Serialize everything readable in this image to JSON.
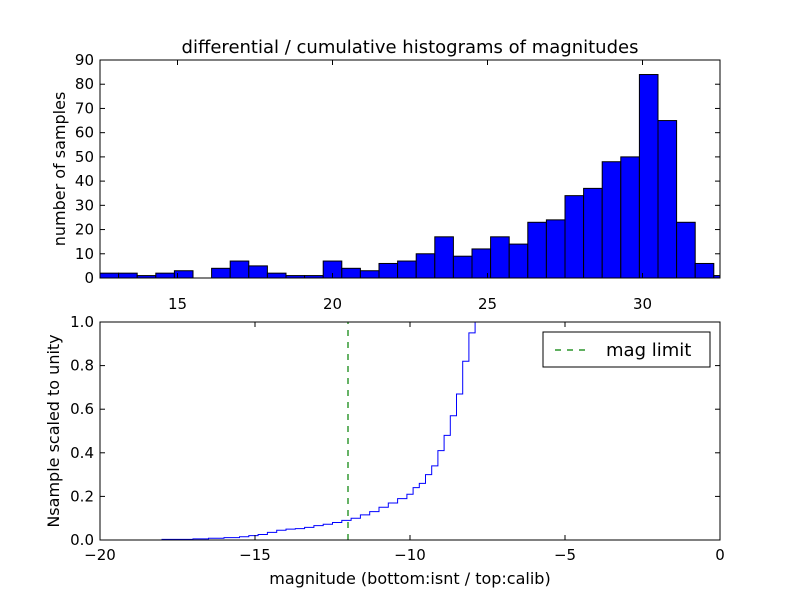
{
  "chart_data": [
    {
      "type": "bar",
      "title": "differential / cumulative histograms of magnitudes",
      "ylabel": "number of samples",
      "xlim": [
        12.5,
        32.5
      ],
      "ylim": [
        0,
        90
      ],
      "xticks": [
        15,
        20,
        25,
        30
      ],
      "yticks": [
        0,
        10,
        20,
        30,
        40,
        50,
        60,
        70,
        80,
        90
      ],
      "bar_color": "#0000ff",
      "bins": [
        {
          "x0": 12.5,
          "x1": 13.1,
          "count": 2
        },
        {
          "x0": 13.1,
          "x1": 13.7,
          "count": 2
        },
        {
          "x0": 13.7,
          "x1": 14.3,
          "count": 1
        },
        {
          "x0": 14.3,
          "x1": 14.9,
          "count": 2
        },
        {
          "x0": 14.9,
          "x1": 15.5,
          "count": 3
        },
        {
          "x0": 15.5,
          "x1": 16.1,
          "count": 0
        },
        {
          "x0": 16.1,
          "x1": 16.7,
          "count": 4
        },
        {
          "x0": 16.7,
          "x1": 17.3,
          "count": 7
        },
        {
          "x0": 17.3,
          "x1": 17.9,
          "count": 5
        },
        {
          "x0": 17.9,
          "x1": 18.5,
          "count": 2
        },
        {
          "x0": 18.5,
          "x1": 19.1,
          "count": 1
        },
        {
          "x0": 19.1,
          "x1": 19.7,
          "count": 1
        },
        {
          "x0": 19.7,
          "x1": 20.3,
          "count": 7
        },
        {
          "x0": 20.3,
          "x1": 20.9,
          "count": 4
        },
        {
          "x0": 20.9,
          "x1": 21.5,
          "count": 3
        },
        {
          "x0": 21.5,
          "x1": 22.1,
          "count": 6
        },
        {
          "x0": 22.1,
          "x1": 22.7,
          "count": 7
        },
        {
          "x0": 22.7,
          "x1": 23.3,
          "count": 10
        },
        {
          "x0": 23.3,
          "x1": 23.9,
          "count": 17
        },
        {
          "x0": 23.9,
          "x1": 24.5,
          "count": 9
        },
        {
          "x0": 24.5,
          "x1": 25.1,
          "count": 12
        },
        {
          "x0": 25.1,
          "x1": 25.7,
          "count": 17
        },
        {
          "x0": 25.7,
          "x1": 26.3,
          "count": 14
        },
        {
          "x0": 26.3,
          "x1": 26.9,
          "count": 23
        },
        {
          "x0": 26.9,
          "x1": 27.5,
          "count": 24
        },
        {
          "x0": 27.5,
          "x1": 28.1,
          "count": 34
        },
        {
          "x0": 28.1,
          "x1": 28.7,
          "count": 37
        },
        {
          "x0": 28.7,
          "x1": 29.3,
          "count": 48
        },
        {
          "x0": 29.3,
          "x1": 29.9,
          "count": 50
        },
        {
          "x0": 29.9,
          "x1": 30.5,
          "count": 84
        },
        {
          "x0": 30.5,
          "x1": 31.1,
          "count": 65
        },
        {
          "x0": 31.1,
          "x1": 31.7,
          "count": 23
        },
        {
          "x0": 31.7,
          "x1": 32.3,
          "count": 6
        },
        {
          "x0": 32.3,
          "x1": 32.9,
          "count": 1
        }
      ]
    },
    {
      "type": "line",
      "drawstyle": "steps",
      "xlabel": "magnitude (bottom:isnt / top:calib)",
      "ylabel": "Nsample scaled to unity",
      "xlim": [
        -20,
        0
      ],
      "ylim": [
        0,
        1.0
      ],
      "xticks": [
        -20,
        -15,
        -10,
        -5,
        0
      ],
      "xtick_labels": [
        "−20",
        "−15",
        "−10",
        "−5",
        "0"
      ],
      "yticks": [
        0.0,
        0.2,
        0.4,
        0.6,
        0.8,
        1.0
      ],
      "ytick_labels": [
        "0.0",
        "0.2",
        "0.4",
        "0.6",
        "0.8",
        "1.0"
      ],
      "series": [
        {
          "color": "#0000ff",
          "x": [
            -20,
            -18,
            -17,
            -16.5,
            -16,
            -15.5,
            -15.2,
            -14.9,
            -14.6,
            -14.3,
            -14.0,
            -13.7,
            -13.4,
            -13.1,
            -12.8,
            -12.5,
            -12.2,
            -11.9,
            -11.6,
            -11.3,
            -11.0,
            -10.7,
            -10.4,
            -10.1,
            -9.9,
            -9.7,
            -9.5,
            -9.3,
            -9.1,
            -8.9,
            -8.7,
            -8.5,
            -8.3,
            -8.1,
            -7.9
          ],
          "y": [
            0,
            0.003,
            0.005,
            0.008,
            0.011,
            0.015,
            0.02,
            0.025,
            0.035,
            0.045,
            0.05,
            0.052,
            0.058,
            0.066,
            0.072,
            0.08,
            0.09,
            0.1,
            0.115,
            0.13,
            0.15,
            0.17,
            0.19,
            0.21,
            0.24,
            0.26,
            0.3,
            0.34,
            0.41,
            0.48,
            0.57,
            0.67,
            0.82,
            0.95,
            1.0
          ]
        },
        {
          "name": "mag limit",
          "color": "#008000",
          "style": "dashed",
          "x": [
            -12,
            -12
          ],
          "y": [
            0,
            1.0
          ]
        }
      ],
      "legend": {
        "location": "upper right",
        "entries": [
          "mag limit"
        ]
      }
    }
  ]
}
